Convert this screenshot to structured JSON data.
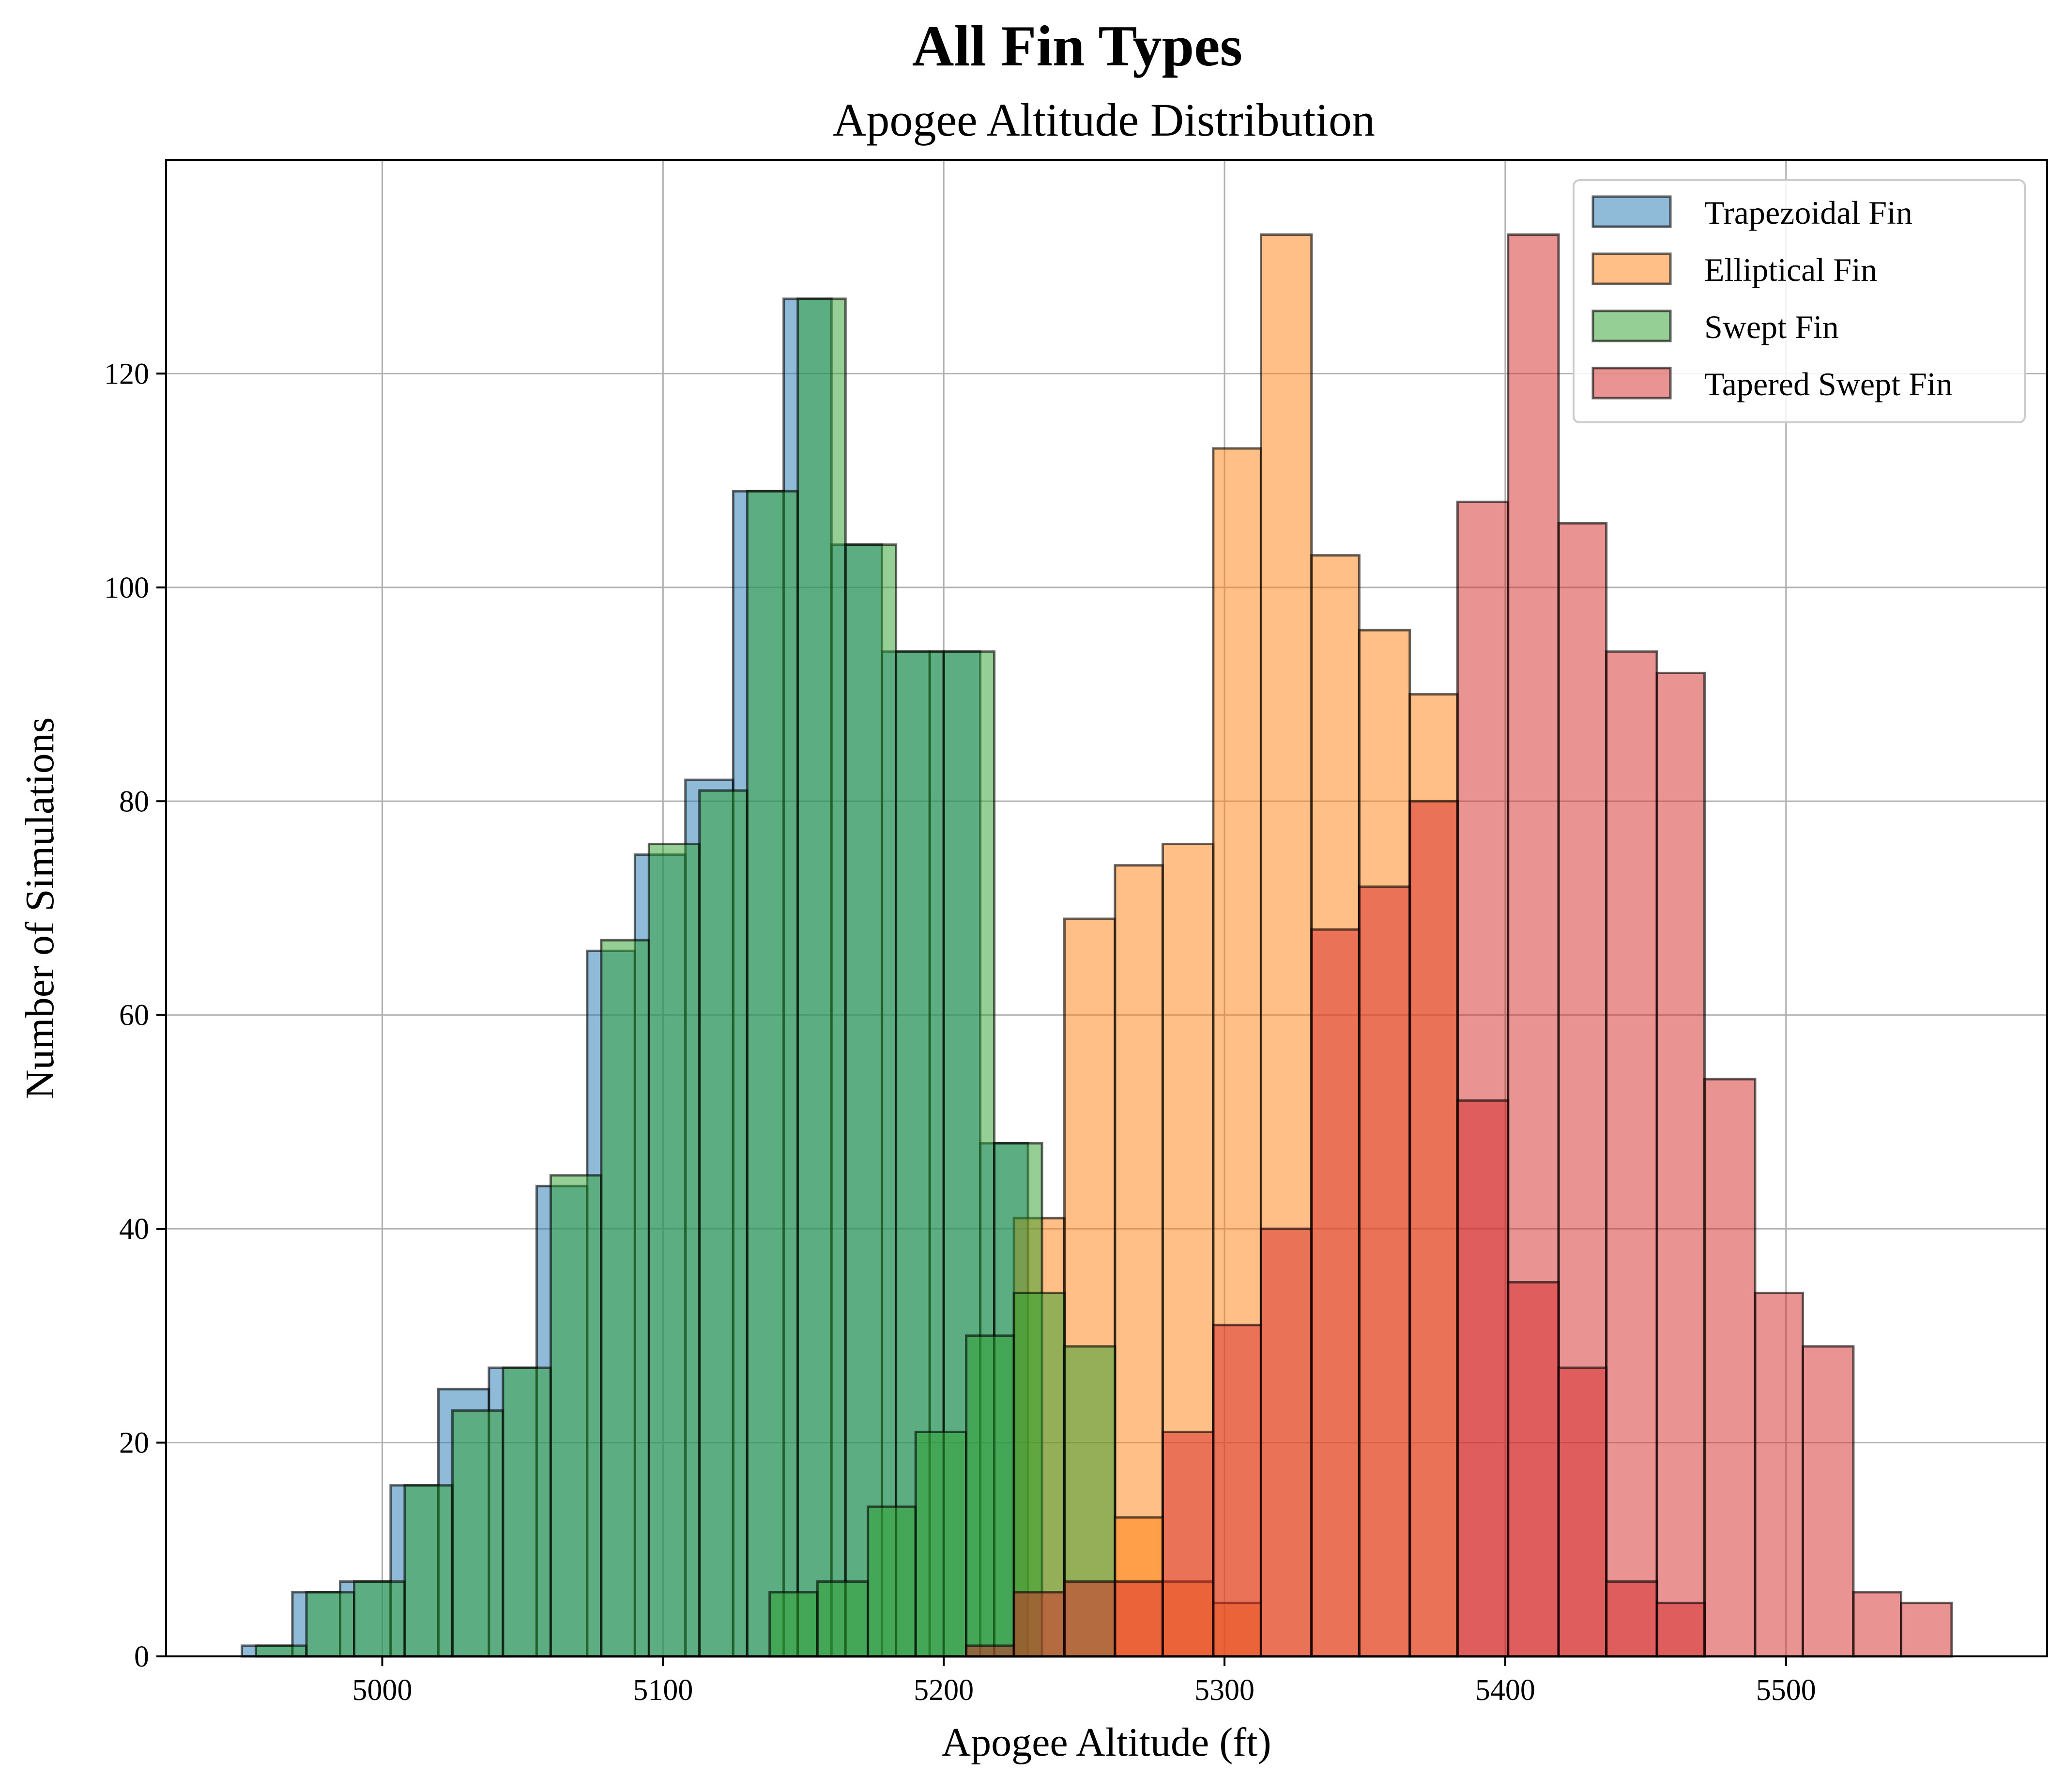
{
  "chart_data": {
    "type": "bar",
    "title": "All Fin Types",
    "subtitle": "Apogee Altitude Distribution",
    "xlabel": "Apogee Altitude (ft)",
    "ylabel": "Number of Simulations",
    "xlim": [
      4923,
      5593
    ],
    "ylim": [
      0,
      140
    ],
    "xticks": [
      5000,
      5100,
      5200,
      5300,
      5400,
      5500
    ],
    "yticks": [
      0,
      20,
      40,
      60,
      80,
      100,
      120
    ],
    "grid": true,
    "legend_position": "top-right",
    "series": [
      {
        "name": "Trapezoidal Fin",
        "color": "#1f77b4",
        "bins": [
          [
            4950,
            4968,
            1
          ],
          [
            4968,
            4985,
            6
          ],
          [
            4985,
            5003,
            7
          ],
          [
            5003,
            5020,
            16
          ],
          [
            5020,
            5038,
            25
          ],
          [
            5038,
            5055,
            27
          ],
          [
            5055,
            5073,
            44
          ],
          [
            5073,
            5090,
            66
          ],
          [
            5090,
            5108,
            75
          ],
          [
            5108,
            5125,
            82
          ],
          [
            5125,
            5143,
            109
          ],
          [
            5143,
            5160,
            127
          ],
          [
            5160,
            5178,
            104
          ],
          [
            5178,
            5195,
            94
          ],
          [
            5195,
            5213,
            94
          ],
          [
            5213,
            5230,
            48
          ]
        ]
      },
      {
        "name": "Elliptical Fin",
        "color": "#ff7f0e",
        "bins": [
          [
            5225,
            5243,
            41
          ],
          [
            5243,
            5261,
            69
          ],
          [
            5261,
            5278,
            74
          ],
          [
            5278,
            5296,
            76
          ],
          [
            5296,
            5313,
            113
          ],
          [
            5313,
            5331,
            133
          ],
          [
            5331,
            5348,
            103
          ],
          [
            5348,
            5366,
            96
          ],
          [
            5366,
            5383,
            90
          ]
        ]
      },
      {
        "name": "Swept Fin",
        "color": "#2ca02c",
        "bins": [
          [
            4955,
            4973,
            1
          ],
          [
            4973,
            4990,
            6
          ],
          [
            4990,
            5008,
            7
          ],
          [
            5008,
            5025,
            16
          ],
          [
            5025,
            5043,
            23
          ],
          [
            5043,
            5060,
            27
          ],
          [
            5060,
            5078,
            45
          ],
          [
            5078,
            5095,
            67
          ],
          [
            5095,
            5113,
            76
          ],
          [
            5113,
            5130,
            81
          ],
          [
            5130,
            5148,
            109
          ],
          [
            5148,
            5165,
            127
          ],
          [
            5165,
            5183,
            104
          ],
          [
            5183,
            5200,
            94
          ],
          [
            5200,
            5218,
            94
          ],
          [
            5218,
            5235,
            48
          ]
        ]
      },
      {
        "name": "Tapered Swept Fin",
        "color": "#d62728",
        "bins": [
          [
            5383,
            5401,
            108
          ],
          [
            5401,
            5419,
            133
          ],
          [
            5419,
            5436,
            106
          ],
          [
            5436,
            5454,
            94
          ],
          [
            5454,
            5471,
            92
          ],
          [
            5471,
            5489,
            54
          ],
          [
            5489,
            5506,
            34
          ],
          [
            5506,
            5524,
            29
          ],
          [
            5524,
            5541,
            6
          ],
          [
            5541,
            5559,
            5
          ]
        ]
      }
    ],
    "overlap_bars": [
      {
        "series": "Swept Fin",
        "bins": [
          [
            5138,
            5155,
            6
          ],
          [
            5155,
            5173,
            7
          ],
          [
            5173,
            5190,
            14
          ],
          [
            5190,
            5208,
            21
          ],
          [
            5208,
            5225,
            30
          ],
          [
            5225,
            5243,
            34
          ],
          [
            5243,
            5261,
            29
          ]
        ]
      },
      {
        "series": "Elliptical Fin",
        "bins": [
          [
            5261,
            5278,
            13
          ],
          [
            5278,
            5296,
            7
          ],
          [
            5296,
            5313,
            5
          ]
        ]
      },
      {
        "series": "Tapered Swept Fin",
        "bins": [
          [
            5208,
            5225,
            1
          ],
          [
            5225,
            5243,
            6
          ],
          [
            5243,
            5261,
            7
          ],
          [
            5261,
            5278,
            7
          ],
          [
            5278,
            5296,
            21
          ],
          [
            5296,
            5313,
            31
          ],
          [
            5313,
            5331,
            40
          ],
          [
            5331,
            5348,
            68
          ],
          [
            5348,
            5366,
            72
          ],
          [
            5366,
            5383,
            80
          ],
          [
            5383,
            5401,
            52
          ],
          [
            5401,
            5419,
            35
          ],
          [
            5419,
            5436,
            27
          ],
          [
            5436,
            5454,
            7
          ],
          [
            5454,
            5471,
            5
          ]
        ]
      }
    ]
  }
}
